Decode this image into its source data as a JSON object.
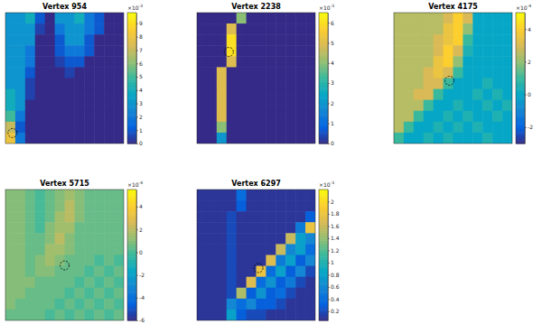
{
  "chart_data": [
    {
      "type": "heatmap",
      "title": "Vertex 954",
      "color": "parula",
      "tick_labels": false,
      "clim": [
        0,
        9.8
      ],
      "cticks": [
        0,
        1,
        2,
        3,
        4,
        5,
        6,
        7,
        8,
        9
      ],
      "colorbar_scale": {
        "base": "×10",
        "exponent": "-3"
      },
      "vertex_marker": {
        "x": 0.06,
        "y": 0.92
      },
      "cells": [
        [
          3,
          3,
          4,
          1,
          0,
          3,
          3,
          4,
          2,
          1,
          0,
          0
        ],
        [
          3,
          3,
          3,
          0.5,
          0,
          2,
          3,
          3,
          2,
          1,
          0,
          0
        ],
        [
          3,
          3,
          3,
          0,
          0,
          1,
          3,
          3,
          1,
          0,
          0,
          0
        ],
        [
          3,
          3,
          2,
          0,
          0,
          1,
          2,
          2,
          1,
          0,
          0,
          0
        ],
        [
          3,
          3,
          2,
          0,
          0,
          0.5,
          1,
          1,
          0,
          0,
          0,
          0
        ],
        [
          3,
          3,
          1,
          0,
          0,
          0,
          0.5,
          0,
          0,
          0,
          0,
          0
        ],
        [
          3,
          3,
          0.5,
          0,
          0,
          0,
          0,
          0,
          0,
          0,
          0,
          0
        ],
        [
          4,
          3,
          0.5,
          0,
          0,
          0,
          0,
          0,
          0,
          0,
          0,
          0
        ],
        [
          4,
          3,
          0,
          0,
          0,
          0,
          0,
          0,
          0,
          0,
          0,
          0
        ],
        [
          5,
          2,
          0,
          0,
          0,
          0,
          0,
          0,
          0,
          0,
          0,
          0
        ],
        [
          7,
          1,
          0,
          0,
          0,
          0,
          0,
          0,
          0,
          0,
          0,
          0
        ],
        [
          8,
          2,
          0,
          0,
          0,
          0,
          0,
          0,
          0,
          0,
          0,
          0
        ]
      ]
    },
    {
      "type": "heatmap",
      "title": "Vertex 2238",
      "color": "parula",
      "tick_labels": false,
      "clim": [
        0,
        6.5
      ],
      "cticks": [
        0,
        1,
        2,
        3,
        4,
        5,
        6
      ],
      "colorbar_scale": {
        "base": "×10",
        "exponent": "-3"
      },
      "vertex_marker": {
        "x": 0.27,
        "y": 0.3
      },
      "cells": [
        [
          0,
          0,
          0,
          0,
          4,
          0,
          0,
          0,
          0,
          0,
          0,
          0
        ],
        [
          0,
          0,
          0,
          5,
          0,
          0,
          0,
          0,
          0,
          0,
          0,
          0
        ],
        [
          0,
          0,
          0,
          6,
          0,
          0,
          0,
          0,
          0,
          0,
          0,
          0
        ],
        [
          0,
          0,
          0,
          6,
          0,
          0,
          0,
          0,
          0,
          0,
          0,
          0
        ],
        [
          0,
          0,
          0,
          5,
          0,
          0,
          0,
          0,
          0,
          0,
          0,
          0
        ],
        [
          0,
          0,
          5,
          0,
          0,
          0,
          0,
          0,
          0,
          0,
          0,
          0
        ],
        [
          0,
          0,
          5,
          0,
          0,
          0,
          0,
          0,
          0,
          0,
          0,
          0
        ],
        [
          0,
          0,
          5,
          0,
          0,
          0,
          0,
          0,
          0,
          0,
          0,
          0
        ],
        [
          0,
          0,
          5,
          0,
          0,
          0,
          0,
          0,
          0,
          0,
          0,
          0
        ],
        [
          0,
          0,
          5,
          0,
          0,
          0,
          0,
          0,
          0,
          0,
          0,
          0
        ],
        [
          0,
          0,
          4,
          0,
          0,
          0,
          0,
          0,
          0,
          0,
          0,
          0
        ],
        [
          0,
          0,
          2,
          0,
          0,
          0,
          0,
          0,
          0,
          0,
          0,
          0
        ]
      ]
    },
    {
      "type": "heatmap",
      "title": "Vertex 4175",
      "color": "parula",
      "tick_labels": false,
      "clim": [
        -3,
        5
      ],
      "cticks": [
        -2,
        0,
        2,
        4
      ],
      "colorbar_scale": {
        "base": "×10",
        "exponent": "-4"
      },
      "vertex_marker": {
        "x": 0.47,
        "y": 0.52
      },
      "cells": [
        [
          2.5,
          2.5,
          2.5,
          2.5,
          2.5,
          3,
          4,
          3,
          0,
          0,
          0,
          0
        ],
        [
          2.5,
          2.5,
          2.5,
          2.5,
          2.5,
          3.5,
          4,
          2,
          0,
          0,
          0,
          0
        ],
        [
          2.5,
          2.5,
          2.5,
          2.5,
          3,
          3.5,
          4,
          1,
          0,
          0,
          0,
          0
        ],
        [
          2.5,
          2.5,
          2.5,
          2.5,
          3,
          4,
          3,
          0.5,
          0,
          0,
          0,
          0
        ],
        [
          2.5,
          2.5,
          2.5,
          2.5,
          3.5,
          4,
          2,
          0,
          0,
          0,
          0,
          0
        ],
        [
          2.5,
          2.5,
          2.5,
          3,
          3.5,
          3,
          1,
          0,
          0,
          0,
          0,
          0
        ],
        [
          2.5,
          2.5,
          2.5,
          3,
          3,
          1,
          0,
          0,
          0,
          0.5,
          0,
          0
        ],
        [
          2.5,
          2.5,
          3,
          3,
          1,
          0,
          0,
          0,
          0.5,
          0,
          0.5,
          0
        ],
        [
          2.5,
          2.5,
          2.5,
          1,
          0,
          0,
          0.5,
          0,
          0,
          0.5,
          0,
          0.5
        ],
        [
          2.5,
          2.5,
          1,
          0,
          0,
          0.5,
          0,
          0.5,
          0,
          0,
          0.5,
          0
        ],
        [
          2.5,
          1,
          0,
          0,
          0.5,
          0,
          0.5,
          0,
          0.5,
          0,
          0,
          0
        ],
        [
          1,
          0,
          0,
          0.5,
          0,
          0.5,
          0,
          0,
          0,
          0.5,
          0,
          0
        ]
      ]
    },
    {
      "type": "heatmap",
      "title": "Vertex 5715",
      "color": "parula",
      "tick_labels": false,
      "clim": [
        -6,
        5.5
      ],
      "cticks": [
        -6,
        -4,
        -2,
        0,
        2,
        4
      ],
      "colorbar_scale": {
        "base": "×10",
        "exponent": "-4"
      },
      "vertex_marker": {
        "x": 0.5,
        "y": 0.58
      },
      "cells": [
        [
          1,
          1,
          0.5,
          0,
          0.5,
          1,
          1.5,
          1,
          0.5,
          0.5,
          0.5,
          0.5
        ],
        [
          1,
          1,
          0.5,
          0,
          0.5,
          1,
          2,
          1,
          0.5,
          0.5,
          0.5,
          0.5
        ],
        [
          1,
          1,
          0.5,
          0,
          0.5,
          1.5,
          2,
          1,
          0.5,
          0.5,
          0.5,
          0.5
        ],
        [
          1,
          1,
          0.5,
          0,
          1,
          1.5,
          1.5,
          0.5,
          0.5,
          0.5,
          0.5,
          0.5
        ],
        [
          1,
          1,
          0.5,
          0.5,
          1,
          2,
          1,
          0.5,
          0.5,
          0.5,
          0.5,
          0.5
        ],
        [
          1,
          1,
          0.5,
          0.5,
          1.5,
          1.5,
          1,
          0.5,
          0.5,
          0.5,
          0.5,
          0.5
        ],
        [
          1,
          1,
          0.5,
          1,
          1.5,
          1,
          0.5,
          0.5,
          0.5,
          0,
          0.5,
          0
        ],
        [
          1,
          1,
          0.5,
          1,
          1,
          0.5,
          0.5,
          0.5,
          0,
          0.5,
          0,
          0.5
        ],
        [
          1,
          1,
          1,
          0.5,
          0.5,
          0.5,
          0.5,
          0,
          0.5,
          0,
          0.5,
          0
        ],
        [
          1,
          1,
          0.5,
          0.5,
          0.5,
          0.5,
          0,
          0.5,
          0,
          0.5,
          0,
          0.5
        ],
        [
          1,
          0.5,
          0.5,
          0.5,
          0.5,
          0,
          0.5,
          0,
          0.5,
          0,
          0.5,
          0
        ],
        [
          0.5,
          0.5,
          0.5,
          0.5,
          0,
          0.5,
          0,
          0.5,
          0,
          0.5,
          0,
          0.5
        ]
      ]
    },
    {
      "type": "heatmap",
      "title": "Vertex 6297",
      "color": "parula",
      "tick_labels": false,
      "clim": [
        0.05,
        2.2
      ],
      "cticks": [
        0.2,
        0.4,
        0.6,
        0.8,
        1,
        1.2,
        1.4,
        1.6,
        1.8,
        2
      ],
      "colorbar_scale": {
        "base": "×10",
        "exponent": "-3"
      },
      "vertex_marker": {
        "x": 0.52,
        "y": 0.6
      },
      "cells": [
        [
          0.1,
          0.1,
          0.1,
          0.1,
          0.4,
          0.1,
          0.1,
          0.1,
          0.1,
          0.1,
          0.1,
          0.1
        ],
        [
          0.1,
          0.1,
          0.1,
          0.1,
          0.3,
          0.1,
          0.1,
          0.1,
          0.1,
          0.1,
          0.1,
          0.1
        ],
        [
          0.1,
          0.1,
          0.1,
          0.2,
          0.1,
          0.1,
          0.1,
          0.1,
          0.1,
          0.1,
          0.1,
          0.3
        ],
        [
          0.1,
          0.1,
          0.1,
          0.2,
          0.1,
          0.1,
          0.1,
          0.1,
          0.1,
          0.1,
          0.5,
          1.8
        ],
        [
          0.1,
          0.1,
          0.1,
          0.2,
          0.1,
          0.1,
          0.1,
          0.1,
          0.1,
          1.6,
          0.8,
          0.6
        ],
        [
          0.1,
          0.1,
          0.1,
          0.2,
          0.1,
          0.1,
          0.1,
          0.1,
          1.6,
          0.6,
          0.8,
          0.4
        ],
        [
          0.1,
          0.1,
          0.1,
          0.2,
          0.1,
          0.1,
          0.1,
          1.7,
          0.5,
          0.8,
          0.3,
          0.6
        ],
        [
          0.1,
          0.1,
          0.1,
          0.2,
          0.1,
          0.1,
          1.8,
          0.4,
          0.8,
          0.3,
          0.6,
          0.2
        ],
        [
          0.1,
          0.1,
          0.1,
          0.2,
          0.1,
          1.7,
          0.4,
          0.7,
          0.3,
          0.5,
          0.2,
          0.1
        ],
        [
          0.1,
          0.1,
          0.1,
          0.2,
          1.5,
          0.3,
          0.7,
          0.3,
          0.4,
          0.2,
          0.1,
          0.1
        ],
        [
          0.1,
          0.1,
          0.1,
          0.6,
          0.4,
          0.6,
          0.3,
          0.3,
          0.2,
          0.1,
          0.1,
          0.1
        ],
        [
          0.1,
          0.1,
          0.1,
          0.8,
          0.3,
          0.2,
          0.2,
          0.1,
          0.1,
          0.1,
          0.1,
          0.1
        ]
      ]
    }
  ]
}
